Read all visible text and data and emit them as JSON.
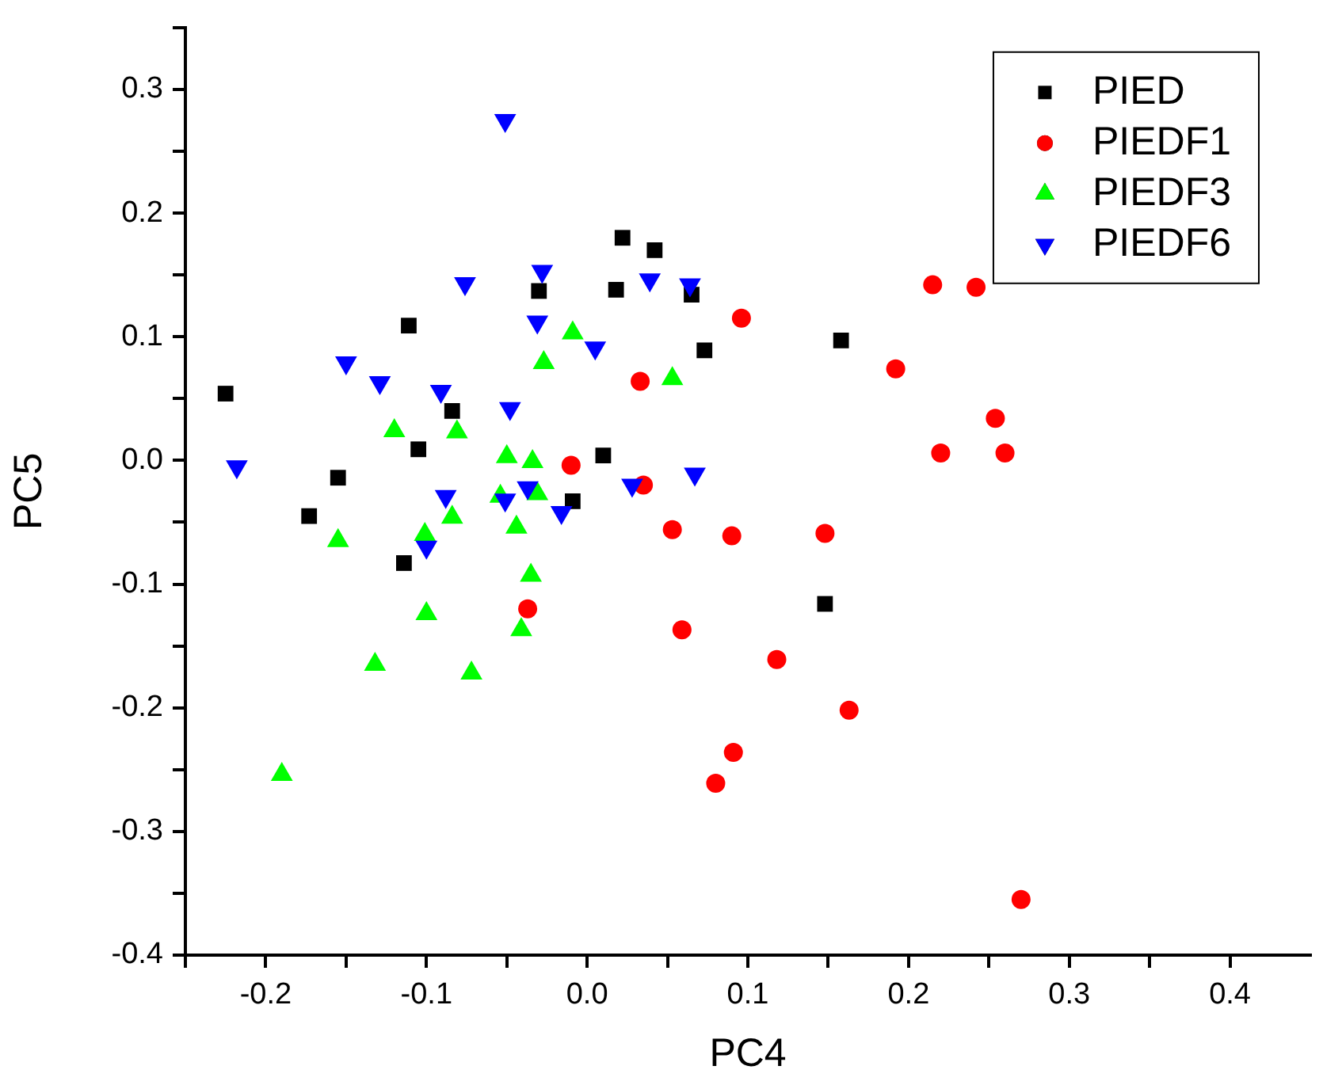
{
  "chart_data": {
    "type": "scatter",
    "xlabel": "PC4",
    "ylabel": "PC5",
    "xlim": [
      -0.25,
      0.45
    ],
    "ylim": [
      -0.4,
      0.35
    ],
    "xticks": [
      {
        "value": -0.25,
        "label": null
      },
      -0.2,
      {
        "value": -0.15,
        "label": null
      },
      -0.1,
      {
        "value": -0.05,
        "label": null
      },
      {
        "value": 0,
        "label": "0.0"
      },
      {
        "value": 0.05,
        "label": null
      },
      0.1,
      {
        "value": 0.15,
        "label": null
      },
      0.2,
      {
        "value": 0.25,
        "label": null
      },
      0.3,
      {
        "value": 0.35,
        "label": null
      },
      0.4
    ],
    "yticks": [
      -0.4,
      {
        "value": -0.35,
        "label": null
      },
      -0.3,
      {
        "value": -0.25,
        "label": null
      },
      -0.2,
      {
        "value": -0.15,
        "label": null
      },
      -0.1,
      {
        "value": -0.05,
        "label": null
      },
      {
        "value": 0,
        "label": "0.0"
      },
      {
        "value": 0.05,
        "label": null
      },
      0.1,
      {
        "value": 0.15,
        "label": null
      },
      0.2,
      {
        "value": 0.25,
        "label": null
      },
      0.3,
      {
        "value": 0.35,
        "label": null
      }
    ],
    "grid": false,
    "legend": "top right",
    "series": [
      {
        "name": "PIED",
        "color": "#000000",
        "marker": "square",
        "x": [
          -0.225,
          -0.173,
          -0.155,
          -0.114,
          -0.111,
          -0.105,
          -0.084,
          -0.03,
          -0.009,
          0.01,
          0.018,
          0.022,
          0.042,
          0.065,
          0.073,
          0.148,
          0.158
        ],
        "values": [
          0.054,
          -0.045,
          -0.014,
          -0.083,
          0.109,
          0.009,
          0.04,
          0.137,
          -0.033,
          0.004,
          0.138,
          0.18,
          0.17,
          0.134,
          0.089,
          -0.116,
          0.097
        ]
      },
      {
        "name": "PIEDF1",
        "color": "#ff0000",
        "marker": "circle",
        "x": [
          0.033,
          -0.01,
          0.035,
          0.053,
          0.09,
          -0.037,
          0.059,
          0.091,
          0.08,
          0.096,
          0.215,
          0.242,
          0.192,
          0.254,
          0.22,
          0.26,
          0.148,
          0.118,
          0.163,
          0.27
        ],
        "values": [
          0.064,
          -0.004,
          -0.02,
          -0.056,
          -0.061,
          -0.12,
          -0.137,
          -0.236,
          -0.261,
          0.115,
          0.142,
          0.14,
          0.074,
          0.034,
          0.006,
          0.006,
          -0.059,
          -0.161,
          -0.202,
          -0.355
        ]
      },
      {
        "name": "PIEDF3",
        "color": "#00ff00",
        "marker": "triangle",
        "x": [
          -0.009,
          -0.027,
          0.053,
          -0.12,
          -0.081,
          -0.05,
          -0.034,
          -0.054,
          -0.031,
          -0.084,
          -0.155,
          -0.101,
          -0.044,
          -0.035,
          -0.1,
          -0.041,
          -0.132,
          -0.072,
          -0.19
        ],
        "values": [
          0.103,
          0.079,
          0.066,
          0.024,
          0.023,
          0.003,
          -0.001,
          -0.029,
          -0.027,
          -0.046,
          -0.065,
          -0.06,
          -0.054,
          -0.093,
          -0.124,
          -0.137,
          -0.165,
          -0.172,
          -0.254
        ]
      },
      {
        "name": "PIEDF6",
        "color": "#0000ff",
        "marker": "triangle-down",
        "x": [
          -0.051,
          -0.028,
          -0.076,
          0.039,
          0.064,
          -0.031,
          0.005,
          -0.15,
          -0.129,
          -0.091,
          -0.048,
          -0.218,
          0.067,
          0.028,
          -0.088,
          -0.051,
          -0.037,
          -0.016,
          -0.1
        ],
        "values": [
          0.275,
          0.153,
          0.143,
          0.146,
          0.142,
          0.112,
          0.091,
          0.079,
          0.063,
          0.056,
          0.042,
          -0.005,
          -0.011,
          -0.02,
          -0.029,
          -0.032,
          -0.022,
          -0.042,
          -0.07
        ]
      }
    ]
  }
}
